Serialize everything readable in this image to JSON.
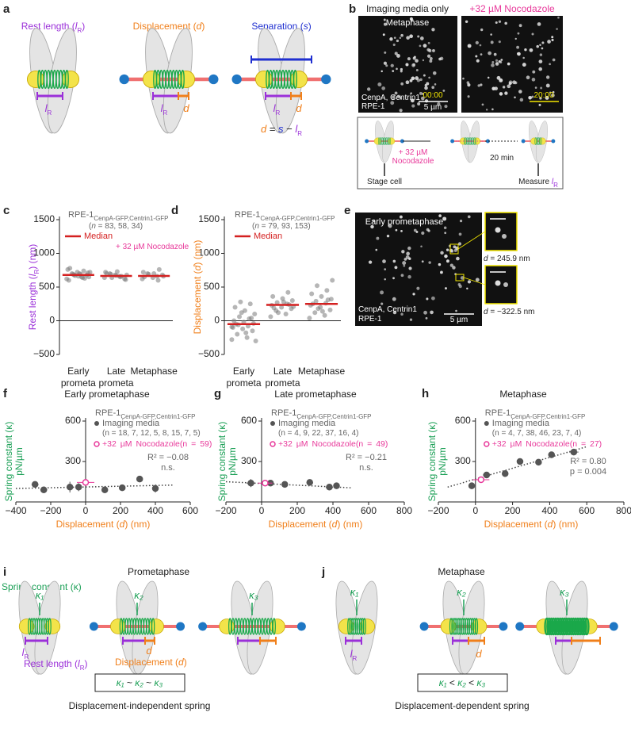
{
  "panel_labels": [
    "a",
    "b",
    "c",
    "d",
    "e",
    "f",
    "g",
    "h",
    "i",
    "j"
  ],
  "panel_a": {
    "titles": [
      [
        "Rest length (",
        "l",
        "R",
        ")"
      ],
      [
        "Displacement (",
        "d",
        ")"
      ],
      [
        "Separation (",
        "s",
        ")"
      ]
    ],
    "lR": [
      "l",
      "R"
    ],
    "d": "d",
    "equation": [
      "d",
      " = ",
      "s",
      " − ",
      "l",
      "R"
    ]
  },
  "panel_b": {
    "titles": [
      "Imaging media only",
      "+32 µM Nocodazole"
    ],
    "stage": "Metaphase",
    "stain": "CenpA, Centrin1",
    "cells": "RPE-1",
    "scale": "5 µm",
    "times": [
      "00:00",
      "20:00"
    ],
    "schematic": {
      "drug": [
        "+ 32 µM",
        "Nocodazole"
      ],
      "wait": "20 min",
      "start": "Stage cell",
      "end": [
        "Measure ",
        "l",
        "R"
      ]
    }
  },
  "panel_e": {
    "stage": "Early prometaphase",
    "stain": "CenpA, Centrin1",
    "cells": "RPE-1",
    "scale": "5 µm",
    "insets": [
      [
        "d",
        " = 245.9 nm"
      ],
      [
        "d",
        " = −322.5 nm"
      ]
    ]
  },
  "chart_data": [
    {
      "type": "strip",
      "y_label": [
        "Rest length (",
        "l",
        "R",
        ") (nm)"
      ],
      "cell_line": [
        "RPE-1",
        "CenpA-GFP,Centrin1-GFP"
      ],
      "n_note": [
        "(",
        "n",
        " = 83, 58, 34)"
      ],
      "median_label": "Median",
      "treatment": "+ 32 µM Nocodazole",
      "ylim": [
        -500,
        1500
      ],
      "yticks": [
        {
          "value": -500,
          "label": "−500"
        },
        0,
        500,
        1000,
        1500
      ],
      "categories": [
        "Early prometa",
        "Late prometa",
        "Metaphase"
      ],
      "point_color": "#7a7a7a",
      "median_color": "#d42020",
      "points": [
        [
          620,
          650,
          700,
          680,
          720,
          760,
          640,
          690,
          710,
          660,
          600,
          740,
          680,
          650,
          700,
          780,
          630,
          670,
          720,
          690
        ],
        [
          640,
          660,
          700,
          620,
          680,
          720,
          650,
          690,
          610,
          670,
          700,
          660,
          640,
          680,
          730
        ],
        [
          620,
          660,
          700,
          680,
          640,
          720,
          600,
          690,
          660,
          700,
          650,
          760
        ]
      ],
      "medians": [
        680,
        665,
        665
      ]
    },
    {
      "type": "strip",
      "y_label": [
        "Displacement (",
        "d",
        ") (nm)"
      ],
      "cell_line": [
        "RPE-1",
        "CenpA-GFP,Centrin1-GFP"
      ],
      "n_note": [
        "(",
        "n",
        " = 79, 93, 153)"
      ],
      "median_label": "Median",
      "ylim": [
        -500,
        1500
      ],
      "yticks": [
        {
          "value": -500,
          "label": "−500"
        },
        0,
        500,
        1000,
        1500
      ],
      "categories": [
        "Early prometa",
        "Late prometa",
        "Metaphase"
      ],
      "point_color": "#7a7a7a",
      "median_color": "#d42020",
      "points": [
        [
          -280,
          -250,
          -200,
          -150,
          -120,
          -100,
          -80,
          -60,
          -40,
          -20,
          0,
          30,
          60,
          100,
          150,
          200,
          250,
          280,
          -300,
          -180,
          -50,
          40,
          120,
          -90
        ],
        [
          60,
          100,
          150,
          180,
          200,
          230,
          250,
          270,
          300,
          330,
          360,
          420,
          120,
          210,
          280,
          190,
          240
        ],
        [
          40,
          80,
          120,
          160,
          200,
          230,
          260,
          290,
          320,
          360,
          400,
          450,
          520,
          600,
          140,
          250,
          310,
          180
        ]
      ],
      "medians": [
        -50,
        235,
        250
      ]
    },
    {
      "type": "scatter",
      "title": "Early prometaphase",
      "cell_line": [
        "RPE-1",
        "CenpA-GFP,Centrin1-GFP"
      ],
      "x_label": [
        "Displacement (",
        "d",
        ") (nm)"
      ],
      "y_label": [
        "Spring constant (κ)",
        "pN/µm"
      ],
      "xlim": [
        -400,
        600
      ],
      "xticks": [
        {
          "value": -400,
          "label": "−400"
        },
        {
          "value": -200,
          "label": "−200"
        },
        0,
        200,
        400,
        600
      ],
      "ylim": [
        0,
        600
      ],
      "yticks": [
        300,
        600
      ],
      "series": [
        {
          "name": "Imaging media",
          "n_note": "(n = 18, 7, 12, 5, 8, 15, 7, 5)",
          "color": "#555555",
          "x": [
            -290,
            -240,
            -90,
            -40,
            110,
            210,
            310,
            400
          ],
          "y": [
            130,
            90,
            110,
            110,
            90,
            105,
            170,
            100
          ],
          "x_err": [
            20,
            20,
            20,
            10,
            15,
            15,
            15,
            15
          ],
          "y_err": [
            15,
            10,
            40,
            30,
            10,
            10,
            20,
            30
          ]
        },
        {
          "name": "+32 µM Nocodazole",
          "n_note": "(n = 59)",
          "color": "#e8389a",
          "x": [
            0
          ],
          "y": [
            145
          ],
          "x_err": [
            50
          ],
          "y_err": [
            15
          ]
        }
      ],
      "trend": {
        "x": [
          -400,
          500
        ],
        "y": [
          100,
          125
        ]
      },
      "stats": [
        "R² = −0.08",
        "n.s."
      ]
    },
    {
      "type": "scatter",
      "title": "Late prometaphase",
      "cell_line": [
        "RPE-1",
        "CenpA-GFP,Centrin1-GFP"
      ],
      "x_label": [
        "Displacement (",
        "d",
        ") (nm)"
      ],
      "y_label": [
        "Spring constant (κ)",
        "pN/µm"
      ],
      "xlim": [
        -200,
        800
      ],
      "xticks": [
        {
          "value": -200,
          "label": "−200"
        },
        0,
        200,
        400,
        600,
        800
      ],
      "ylim": [
        0,
        600
      ],
      "yticks": [
        300,
        600
      ],
      "series": [
        {
          "name": "Imaging media",
          "n_note": "(n = 4, 9, 22, 37, 16, 4)",
          "color": "#555555",
          "x": [
            -60,
            50,
            130,
            270,
            380,
            420
          ],
          "y": [
            140,
            140,
            130,
            145,
            110,
            120
          ],
          "x_err": [
            25,
            15,
            15,
            15,
            20,
            15
          ],
          "y_err": [
            30,
            15,
            10,
            10,
            20,
            15
          ]
        },
        {
          "name": "+32 µM Nocodazole",
          "n_note": "(n = 49)",
          "color": "#e8389a",
          "x": [
            20
          ],
          "y": [
            140
          ],
          "x_err": [
            40
          ],
          "y_err": [
            10
          ]
        }
      ],
      "trend": {
        "x": [
          -200,
          500
        ],
        "y": [
          150,
          105
        ]
      },
      "stats": [
        "R² = −0.21",
        "n.s."
      ]
    },
    {
      "type": "scatter",
      "title": "Metaphase",
      "cell_line": [
        "RPE-1",
        "CenpA-GFP,Centrin1-GFP"
      ],
      "x_label": [
        "Displacement (",
        "d",
        ") (nm)"
      ],
      "y_label": [
        "Spring constant (κ)",
        "pN/µm"
      ],
      "xlim": [
        -200,
        800
      ],
      "xticks": [
        {
          "value": -200,
          "label": "−200"
        },
        0,
        200,
        400,
        600,
        800
      ],
      "ylim": [
        0,
        600
      ],
      "yticks": [
        300,
        600
      ],
      "series": [
        {
          "name": "Imaging media",
          "n_note": "(n = 4, 7, 38, 46, 23, 7, 4)",
          "color": "#555555",
          "x": [
            -20,
            60,
            160,
            240,
            340,
            410,
            530
          ],
          "y": [
            120,
            200,
            210,
            300,
            295,
            350,
            370
          ],
          "x_err": [
            10,
            20,
            15,
            15,
            15,
            15,
            25
          ],
          "y_err": [
            25,
            15,
            10,
            10,
            10,
            10,
            15
          ]
        },
        {
          "name": "+32 µM Nocodazole",
          "n_note": "(n = 27)",
          "color": "#e8389a",
          "x": [
            30
          ],
          "y": [
            165
          ],
          "x_err": [
            45
          ],
          "y_err": [
            15
          ]
        }
      ],
      "trend": {
        "x": [
          -150,
          600
        ],
        "y": [
          110,
          410
        ]
      },
      "stats": [
        "R² = 0.80",
        "p = 0.004"
      ]
    }
  ],
  "panel_i": {
    "title": "Prometaphase",
    "kappa_label": "Spring constant (κ)",
    "kappas": [
      "κ₁",
      "κ₂",
      "κ₃"
    ],
    "rest_label": [
      "Rest length (",
      "l",
      "R",
      ")"
    ],
    "lR": [
      "l",
      "R"
    ],
    "disp_label": [
      "Displacement (",
      "d",
      ")"
    ],
    "d": "d",
    "relation": [
      "κ₁",
      " ~ ",
      "κ₂",
      " ~ ",
      "κ₃"
    ],
    "caption": "Displacement-independent spring"
  },
  "panel_j": {
    "title": "Metaphase",
    "kappas": [
      "κ₁",
      "κ₂",
      "κ₃"
    ],
    "lR": [
      "l",
      "R"
    ],
    "d": "d",
    "relation": [
      "κ₁",
      " < ",
      "κ₂",
      " < ",
      "κ₃"
    ],
    "caption": "Displacement-dependent spring"
  }
}
